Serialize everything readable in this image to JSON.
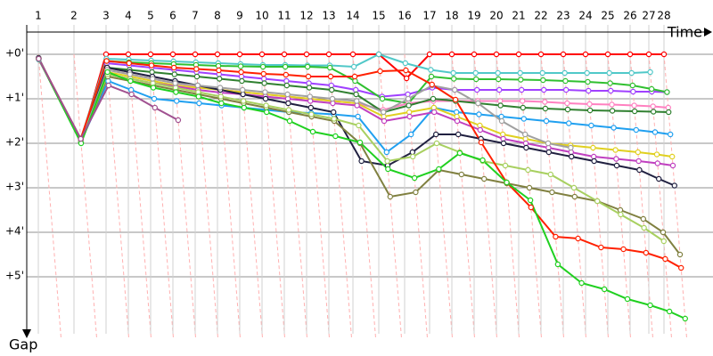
{
  "chart_data": {
    "type": "line",
    "x_label": "Time",
    "y_label": "Gap",
    "x": [
      0.26,
      1.06,
      1.78,
      2.28,
      2.78,
      3.28,
      3.78,
      4.28,
      4.78,
      5.28,
      5.78,
      6.28,
      6.78,
      7.32,
      7.9,
      8.48,
      9.04,
      9.54,
      10.04,
      10.54,
      11.04,
      11.54,
      12.04,
      12.54,
      13.04,
      13.54,
      13.96,
      14.3
    ],
    "xlim": [
      0,
      15.4
    ],
    "xticks": [
      {
        "value": 0.26,
        "label": "1"
      },
      {
        "value": 1.06,
        "label": "2"
      },
      {
        "value": 1.78,
        "label": "3"
      },
      {
        "value": 2.28,
        "label": "4"
      },
      {
        "value": 2.78,
        "label": "5"
      },
      {
        "value": 3.28,
        "label": "6"
      },
      {
        "value": 3.78,
        "label": "7"
      },
      {
        "value": 4.28,
        "label": "8"
      },
      {
        "value": 4.78,
        "label": "9"
      },
      {
        "value": 5.28,
        "label": "10"
      },
      {
        "value": 5.78,
        "label": "11"
      },
      {
        "value": 6.28,
        "label": "12"
      },
      {
        "value": 6.78,
        "label": "13"
      },
      {
        "value": 7.32,
        "label": "14"
      },
      {
        "value": 7.9,
        "label": "15"
      },
      {
        "value": 8.48,
        "label": "16"
      },
      {
        "value": 9.04,
        "label": "17"
      },
      {
        "value": 9.54,
        "label": "18"
      },
      {
        "value": 10.04,
        "label": "19"
      },
      {
        "value": 10.54,
        "label": "20"
      },
      {
        "value": 11.04,
        "label": "21"
      },
      {
        "value": 11.54,
        "label": "22"
      },
      {
        "value": 12.04,
        "label": "23"
      },
      {
        "value": 12.54,
        "label": "24"
      },
      {
        "value": 13.04,
        "label": "25"
      },
      {
        "value": 13.54,
        "label": "26"
      },
      {
        "value": 13.96,
        "label": "27"
      },
      {
        "value": 14.3,
        "label": "28"
      }
    ],
    "ylim": [
      -0.7,
      6.4
    ],
    "yticks": [
      {
        "value": 0,
        "label": "+0'"
      },
      {
        "value": 1,
        "label": "+1'"
      },
      {
        "value": 2,
        "label": "+2'"
      },
      {
        "value": 3,
        "label": "+3'"
      },
      {
        "value": 4,
        "label": "+4'"
      },
      {
        "value": 5,
        "label": "+5'"
      }
    ],
    "y_inverted": true,
    "grid": true,
    "series": [
      {
        "color": "#ff0000",
        "values": [
          0.1,
          1.95,
          0,
          0,
          0,
          0,
          0,
          0,
          0,
          0,
          0,
          0,
          0,
          0,
          0,
          0.54,
          0,
          0,
          0,
          0,
          0,
          0,
          0,
          0,
          0,
          0,
          0,
          0
        ]
      },
      {
        "color": "#50c8c8",
        "values": [
          0.12,
          1.9,
          0.1,
          0.12,
          0.14,
          0.16,
          0.18,
          0.2,
          0.22,
          0.24,
          0.24,
          0.25,
          0.25,
          0.28,
          0,
          0.2,
          0.35,
          0.42,
          0.42,
          0.42,
          0.42,
          0.42,
          0.42,
          0.42,
          0.42,
          0.42,
          0.4,
          null
        ]
      },
      {
        "color": "#a040ff",
        "values": [
          0.1,
          1.92,
          0.2,
          0.25,
          0.3,
          0.35,
          0.4,
          0.45,
          0.5,
          0.55,
          0.6,
          0.65,
          0.7,
          0.8,
          0.95,
          0.9,
          0.75,
          0.8,
          0.8,
          0.8,
          0.8,
          0.8,
          0.8,
          0.82,
          0.82,
          0.84,
          0.84,
          0.85
        ]
      },
      {
        "color": "#30c030",
        "values": [
          0.1,
          1.93,
          0.15,
          0.18,
          0.2,
          0.22,
          0.24,
          0.26,
          0.27,
          0.28,
          0.28,
          0.28,
          0.3,
          0.6,
          1.0,
          1.1,
          0.5,
          0.55,
          0.56,
          0.56,
          0.57,
          0.58,
          0.6,
          0.62,
          0.65,
          0.7,
          0.78,
          0.85
        ]
      },
      {
        "color": "#ff80c0",
        "values": [
          0.1,
          1.95,
          0.35,
          0.45,
          0.55,
          0.65,
          0.72,
          0.8,
          0.85,
          0.9,
          0.95,
          1.0,
          1.05,
          1.1,
          1.25,
          1.1,
          1.05,
          1.05,
          1.05,
          1.05,
          1.05,
          1.07,
          1.1,
          1.12,
          1.13,
          1.15,
          1.17,
          1.2
        ]
      },
      {
        "color": "#308030",
        "values": [
          0.1,
          1.95,
          0.3,
          0.35,
          0.4,
          0.45,
          0.5,
          0.55,
          0.6,
          0.65,
          0.7,
          0.75,
          0.8,
          0.9,
          1.3,
          1.15,
          1.0,
          1.05,
          1.1,
          1.15,
          1.2,
          1.22,
          1.24,
          1.26,
          1.27,
          1.28,
          1.29,
          1.3
        ]
      },
      {
        "color": "#20a0f0",
        "values": [
          0.1,
          1.96,
          0.6,
          0.8,
          1.0,
          1.05,
          1.1,
          1.15,
          1.2,
          1.25,
          1.3,
          1.32,
          1.35,
          1.4,
          2.2,
          1.8,
          1.2,
          1.3,
          1.35,
          1.4,
          1.45,
          1.5,
          1.55,
          1.6,
          1.65,
          1.7,
          1.75,
          1.8
        ]
      },
      {
        "color": "#e0d020",
        "values": [
          0.1,
          1.95,
          0.4,
          0.5,
          0.6,
          0.7,
          0.75,
          0.8,
          0.85,
          0.9,
          0.95,
          1.0,
          1.05,
          1.1,
          1.4,
          1.3,
          1.2,
          1.4,
          1.6,
          1.8,
          1.9,
          2.0,
          2.05,
          2.1,
          2.15,
          2.2,
          2.25,
          2.3
        ]
      },
      {
        "color": "#c040c0",
        "values": [
          0.1,
          1.96,
          0.45,
          0.55,
          0.65,
          0.72,
          0.8,
          0.86,
          0.9,
          0.95,
          1.0,
          1.05,
          1.1,
          1.15,
          1.5,
          1.4,
          1.3,
          1.5,
          1.7,
          1.9,
          2.0,
          2.1,
          2.2,
          2.3,
          2.35,
          2.4,
          2.45,
          2.5
        ]
      },
      {
        "color": "#202040",
        "values": [
          0.08,
          1.97,
          0.3,
          0.4,
          0.5,
          0.6,
          0.7,
          0.8,
          0.9,
          1.0,
          1.1,
          1.2,
          1.3,
          2.4,
          2.5,
          2.2,
          1.8,
          1.8,
          1.9,
          2.0,
          2.1,
          2.2,
          2.3,
          2.4,
          2.5,
          2.6,
          2.8,
          2.95
        ]
      },
      {
        "color": "#808040",
        "values": [
          0.1,
          1.98,
          0.5,
          0.6,
          0.7,
          0.8,
          0.9,
          1.0,
          1.1,
          1.2,
          1.3,
          1.4,
          1.5,
          2.0,
          3.2,
          3.1,
          2.6,
          2.7,
          2.8,
          2.9,
          3.0,
          3.1,
          3.2,
          3.3,
          3.5,
          3.7,
          4.0,
          4.5
        ]
      },
      {
        "color": "#a8d060",
        "values": [
          0.1,
          1.97,
          0.45,
          0.55,
          0.65,
          0.75,
          0.85,
          0.95,
          1.05,
          1.15,
          1.25,
          1.35,
          1.45,
          1.6,
          2.4,
          2.3,
          2.0,
          2.2,
          2.4,
          2.5,
          2.6,
          2.7,
          3.0,
          3.3,
          3.6,
          3.9,
          4.2,
          null
        ]
      },
      {
        "color": "#a0a0a0",
        "values": [
          0.1,
          1.95,
          0.35,
          0.45,
          0.55,
          0.65,
          0.7,
          0.75,
          0.8,
          0.85,
          0.9,
          0.95,
          1.0,
          1.05,
          1.3,
          1.0,
          0.7,
          0.8,
          1.1,
          1.5,
          1.8,
          2.0,
          2.1,
          null,
          null,
          null,
          null,
          null
        ]
      },
      {
        "color": "#ff2000",
        "values": [
          0.1,
          1.9,
          0.15,
          0.2,
          0.25,
          0.3,
          0.33,
          0.36,
          0.4,
          0.44,
          0.46,
          0.5,
          0.5,
          0.5,
          0.38,
          0.36,
          0.68,
          1.02,
          1.98,
          2.88,
          3.44,
          4.1,
          4.14,
          4.34,
          4.38,
          4.46,
          4.6,
          4.8
        ]
      },
      {
        "color": "#20d020",
        "values": [
          0.1,
          2.0,
          0.4,
          0.6,
          0.75,
          0.85,
          0.95,
          1.1,
          1.2,
          1.3,
          1.5,
          1.74,
          1.84,
          1.98,
          2.58,
          2.78,
          2.58,
          2.22,
          2.38,
          2.88,
          3.28,
          4.72,
          5.14,
          5.28,
          5.5,
          5.64,
          5.78,
          5.94
        ]
      },
      {
        "color": "#a05090",
        "values": [
          0.1,
          1.9,
          0.7,
          0.9,
          1.2,
          1.48,
          null,
          null,
          null,
          null,
          null,
          null,
          null,
          null,
          null,
          null,
          null,
          null,
          null,
          null,
          null,
          null,
          null,
          null,
          null,
          null,
          null,
          null
        ]
      }
    ]
  }
}
